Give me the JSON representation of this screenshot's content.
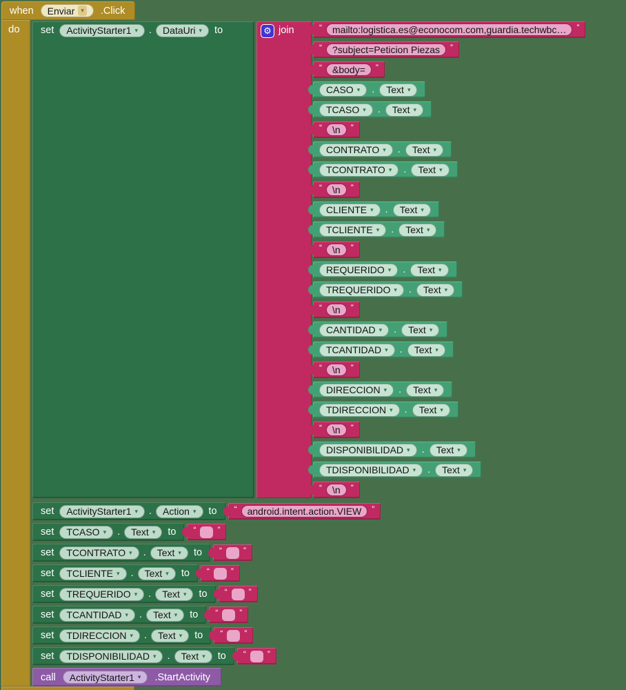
{
  "colors": {
    "canvas_bg": "#47704A",
    "event_gold": "#AE8C26",
    "setter_green": "#2C7148",
    "getter_green": "#42A074",
    "text_magenta": "#C02A61",
    "procedure_purple": "#8D5BA6",
    "mutator_blue": "#4135CE",
    "string_field_pink": "#E9A6C8"
  },
  "chrome": {
    "dot": ".",
    "open_quote": "“",
    "close_quote": "”",
    "dropdown_arrow": "▾",
    "gear_glyph": "⚙"
  },
  "when_block": {
    "keyword": "when",
    "component": "Enviar",
    "event": ".Click",
    "do_label": "do"
  },
  "data_uri_statement": {
    "keyword": "set",
    "component": "ActivityStarter1",
    "property": "DataUri",
    "to_label": "to"
  },
  "join_block": {
    "label": "join",
    "items": [
      {
        "type": "string",
        "value": "mailto:logistica.es@econocom.com,guardia.techwbc…"
      },
      {
        "type": "string",
        "value": "?subject=Peticion Piezas"
      },
      {
        "type": "string",
        "value": "&body="
      },
      {
        "type": "getter",
        "component": "CASO",
        "property": "Text"
      },
      {
        "type": "getter",
        "component": "TCASO",
        "property": "Text"
      },
      {
        "type": "string",
        "value": "\\n"
      },
      {
        "type": "getter",
        "component": "CONTRATO",
        "property": "Text"
      },
      {
        "type": "getter",
        "component": "TCONTRATO",
        "property": "Text"
      },
      {
        "type": "string",
        "value": "\\n"
      },
      {
        "type": "getter",
        "component": "CLIENTE",
        "property": "Text"
      },
      {
        "type": "getter",
        "component": "TCLIENTE",
        "property": "Text"
      },
      {
        "type": "string",
        "value": "\\n"
      },
      {
        "type": "getter",
        "component": "REQUERIDO",
        "property": "Text"
      },
      {
        "type": "getter",
        "component": "TREQUERIDO",
        "property": "Text"
      },
      {
        "type": "string",
        "value": "\\n"
      },
      {
        "type": "getter",
        "component": "CANTIDAD",
        "property": "Text"
      },
      {
        "type": "getter",
        "component": "TCANTIDAD",
        "property": "Text"
      },
      {
        "type": "string",
        "value": "\\n"
      },
      {
        "type": "getter",
        "component": "DIRECCION",
        "property": "Text"
      },
      {
        "type": "getter",
        "component": "TDIRECCION",
        "property": "Text"
      },
      {
        "type": "string",
        "value": "\\n"
      },
      {
        "type": "getter",
        "component": "DISPONIBILIDAD",
        "property": "Text"
      },
      {
        "type": "getter",
        "component": "TDISPONIBILIDAD",
        "property": "Text"
      },
      {
        "type": "string",
        "value": "\\n"
      }
    ]
  },
  "statements": [
    {
      "keyword": "set",
      "component": "ActivityStarter1",
      "property": "Action",
      "to_label": "to",
      "value_type": "string",
      "value": "android.intent.action.VIEW"
    },
    {
      "keyword": "set",
      "component": "TCASO",
      "property": "Text",
      "to_label": "to",
      "value_type": "empty_string",
      "value": ""
    },
    {
      "keyword": "set",
      "component": "TCONTRATO",
      "property": "Text",
      "to_label": "to",
      "value_type": "empty_string",
      "value": ""
    },
    {
      "keyword": "set",
      "component": "TCLIENTE",
      "property": "Text",
      "to_label": "to",
      "value_type": "empty_string",
      "value": ""
    },
    {
      "keyword": "set",
      "component": "TREQUERIDO",
      "property": "Text",
      "to_label": "to",
      "value_type": "empty_string",
      "value": ""
    },
    {
      "keyword": "set",
      "component": "TCANTIDAD",
      "property": "Text",
      "to_label": "to",
      "value_type": "empty_string",
      "value": ""
    },
    {
      "keyword": "set",
      "component": "TDIRECCION",
      "property": "Text",
      "to_label": "to",
      "value_type": "empty_string",
      "value": ""
    },
    {
      "keyword": "set",
      "component": "TDISPONIBILIDAD",
      "property": "Text",
      "to_label": "to",
      "value_type": "empty_string",
      "value": ""
    }
  ],
  "call_statement": {
    "keyword": "call",
    "component": "ActivityStarter1",
    "method": ".StartActivity"
  }
}
